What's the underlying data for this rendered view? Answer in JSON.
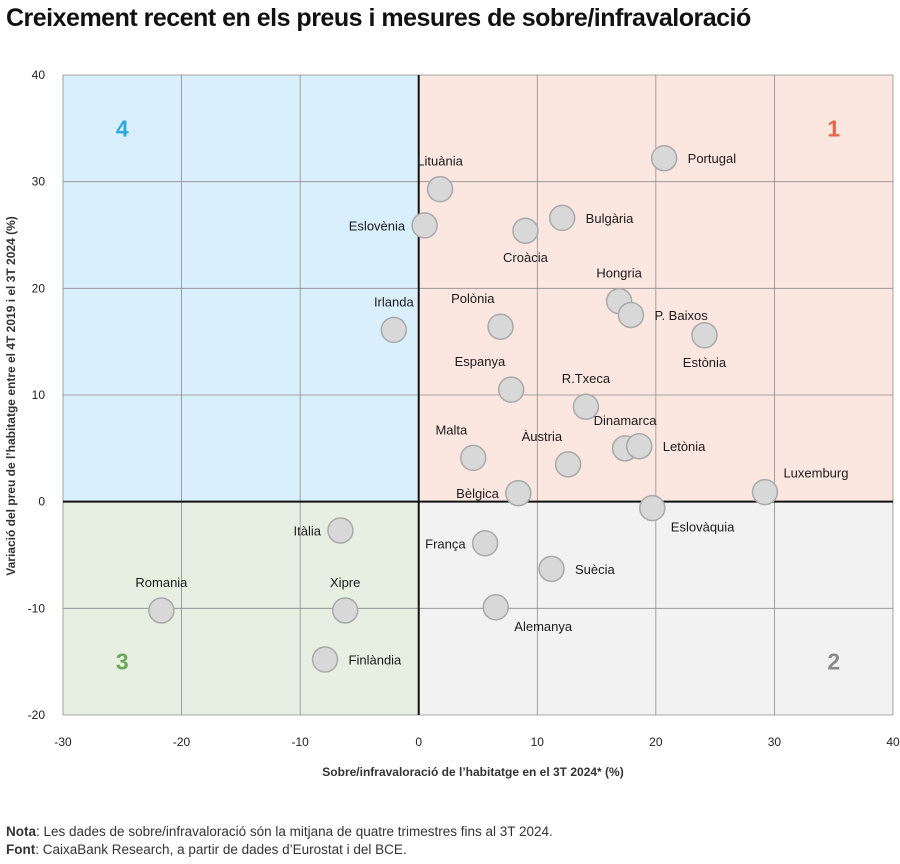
{
  "page": {
    "title": "Creixement recent en els preus i mesures de sobre/infravaloració",
    "note_label": "Nota",
    "note_text": ": Les dades de sobre/infravaloració són la mitjana de quatre trimestres fins al 3T 2024.",
    "source_label": "Font",
    "source_text": ": CaixaBank Research, a partir de dades d’Eurostat i del BCE."
  },
  "chart_data": {
    "type": "scatter",
    "xlabel": "Sobre/infravaloració de l’habitatge en el 3T 2024* (%)",
    "ylabel": "Variació del preu de l’habitatge entre el 4T 2019 i el 3T 2024 (%)",
    "xlim": [
      -30,
      40
    ],
    "ylim": [
      -20,
      40
    ],
    "xticks": [
      -30,
      -20,
      -10,
      0,
      10,
      20,
      30,
      40
    ],
    "yticks": [
      -20,
      -10,
      0,
      10,
      20,
      30,
      40
    ],
    "quadrants": [
      {
        "label": "1",
        "x_range": [
          0,
          40
        ],
        "y_range": [
          0,
          40
        ],
        "fill": "#fce6e0",
        "label_color": "#e8674a",
        "label_at": [
          35,
          35
        ]
      },
      {
        "label": "2",
        "x_range": [
          0,
          40
        ],
        "y_range": [
          -20,
          0
        ],
        "fill": "#f2f2f2",
        "label_color": "#8a8a8a",
        "label_at": [
          35,
          -15
        ]
      },
      {
        "label": "3",
        "x_range": [
          -30,
          0
        ],
        "y_range": [
          -20,
          0
        ],
        "fill": "#e6efe1",
        "label_color": "#6aa85a",
        "label_at": [
          -25,
          -15
        ]
      },
      {
        "label": "4",
        "x_range": [
          -30,
          0
        ],
        "y_range": [
          0,
          40
        ],
        "fill": "#d9effb",
        "label_color": "#2fa8df",
        "label_at": [
          -25,
          35
        ]
      }
    ],
    "points": [
      {
        "name": "Portugal",
        "x": 20.7,
        "y": 32.2,
        "label_pos": "right"
      },
      {
        "name": "Lituània",
        "x": 1.8,
        "y": 29.3,
        "label_pos": "above"
      },
      {
        "name": "Eslovènia",
        "x": 0.5,
        "y": 25.9,
        "label_pos": "left"
      },
      {
        "name": "Bulgària",
        "x": 12.1,
        "y": 26.6,
        "label_pos": "right"
      },
      {
        "name": "Croàcia",
        "x": 9.0,
        "y": 25.4,
        "label_pos": "below"
      },
      {
        "name": "Hongria",
        "x": 16.9,
        "y": 18.8,
        "label_pos": "above"
      },
      {
        "name": "P. Baixos",
        "x": 17.9,
        "y": 17.5,
        "label_pos": "right"
      },
      {
        "name": "Estònia",
        "x": 24.1,
        "y": 15.6,
        "label_pos": "below"
      },
      {
        "name": "Irlanda",
        "x": -2.1,
        "y": 16.1,
        "label_pos": "above"
      },
      {
        "name": "Polònia",
        "x": 6.9,
        "y": 16.4,
        "label_pos": "above-left"
      },
      {
        "name": "Espanya",
        "x": 7.8,
        "y": 10.5,
        "label_pos": "above-left"
      },
      {
        "name": "R.Txeca",
        "x": 14.1,
        "y": 8.9,
        "label_pos": "above"
      },
      {
        "name": "Dinamarca",
        "x": 17.4,
        "y": 5.0,
        "label_pos": "above"
      },
      {
        "name": "Letònia",
        "x": 18.6,
        "y": 5.2,
        "label_pos": "right"
      },
      {
        "name": "Malta",
        "x": 4.6,
        "y": 4.1,
        "label_pos": "above-left"
      },
      {
        "name": "Àustria",
        "x": 12.6,
        "y": 3.5,
        "label_pos": "above-left"
      },
      {
        "name": "Bèlgica",
        "x": 8.4,
        "y": 0.8,
        "label_pos": "left"
      },
      {
        "name": "Luxemburg",
        "x": 29.2,
        "y": 0.9,
        "label_pos": "above-right"
      },
      {
        "name": "Eslovàquia",
        "x": 19.7,
        "y": -0.6,
        "label_pos": "below-right"
      },
      {
        "name": "Itàlia",
        "x": -6.6,
        "y": -2.7,
        "label_pos": "left"
      },
      {
        "name": "França",
        "x": 5.6,
        "y": -3.9,
        "label_pos": "left"
      },
      {
        "name": "Suècia",
        "x": 11.2,
        "y": -6.3,
        "label_pos": "right"
      },
      {
        "name": "Romania",
        "x": -21.7,
        "y": -10.2,
        "label_pos": "above"
      },
      {
        "name": "Xipre",
        "x": -6.2,
        "y": -10.2,
        "label_pos": "above"
      },
      {
        "name": "Alemanya",
        "x": 6.5,
        "y": -9.9,
        "label_pos": "below-right"
      },
      {
        "name": "Finlàndia",
        "x": -7.9,
        "y": -14.8,
        "label_pos": "right"
      }
    ],
    "marker_fill": "#d8d8d8",
    "marker_stroke": "#a9a9a9"
  }
}
